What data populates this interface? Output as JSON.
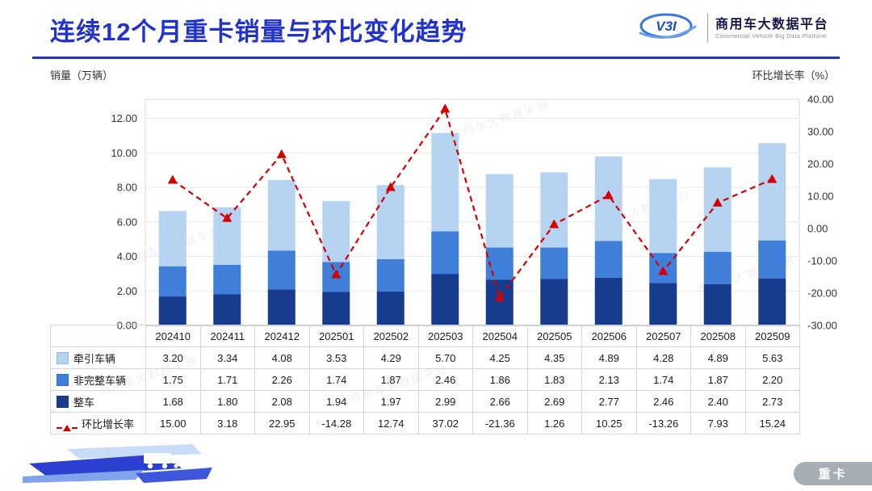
{
  "header": {
    "title": "连续12个月重卡销量与环比变化趋势",
    "logo_text": "V3I",
    "brand_name": "商用车大数据平台",
    "brand_subtitle": "Commercial Vehicle Big Data Platform"
  },
  "axes": {
    "left_label": "销量（万辆）",
    "right_label": "环比增长率（%）"
  },
  "chart_data": {
    "type": "bar",
    "subtype": "stacked-bars-with-line",
    "title": "连续12个月重卡销量与环比变化趋势",
    "categories": [
      "202410",
      "202411",
      "202412",
      "202501",
      "202502",
      "202503",
      "202504",
      "202505",
      "202506",
      "202507",
      "202508",
      "202509"
    ],
    "series": [
      {
        "name": "牵引车辆",
        "type": "bar",
        "color": "#B7D3F2",
        "values": [
          3.2,
          3.34,
          4.08,
          3.53,
          4.29,
          5.7,
          4.25,
          4.35,
          4.89,
          4.28,
          4.89,
          5.63
        ]
      },
      {
        "name": "非完整车辆",
        "type": "bar",
        "color": "#3F7FD9",
        "values": [
          1.75,
          1.71,
          2.26,
          1.74,
          1.87,
          2.46,
          1.86,
          1.83,
          2.13,
          1.74,
          1.87,
          2.2
        ]
      },
      {
        "name": "整车",
        "type": "bar",
        "color": "#173C8D",
        "values": [
          1.68,
          1.8,
          2.08,
          1.94,
          1.97,
          2.99,
          2.66,
          2.69,
          2.77,
          2.46,
          2.4,
          2.73
        ]
      },
      {
        "name": "环比增长率",
        "type": "line",
        "color": "#D40000",
        "values": [
          15.0,
          3.18,
          22.95,
          -14.28,
          12.74,
          37.02,
          -21.36,
          1.26,
          10.25,
          -13.26,
          7.93,
          15.24
        ]
      }
    ],
    "stack_order_bottom_to_top": [
      "整车",
      "非完整车辆",
      "牵引车辆"
    ],
    "left_axis": {
      "label": "销量（万辆）",
      "min": 0,
      "plot_max": 13.1,
      "ticks": [
        0,
        2,
        4,
        6,
        8,
        10,
        12
      ]
    },
    "right_axis": {
      "label": "环比增长率（%）",
      "min": -30,
      "max": 40,
      "ticks": [
        -30,
        -20,
        -10,
        0,
        10,
        20,
        30,
        40
      ]
    },
    "grid": "horizontal-only",
    "legend_position": "table-left-column"
  },
  "badge": "重卡",
  "watermark": "商用车大数据平台",
  "colors": {
    "title_accent": "#2233CC",
    "bar_light": "#B7D3F2",
    "bar_medium": "#3F7FD9",
    "bar_dark": "#173C8D",
    "line_red": "#D40000",
    "badge_bg": "#A7ADB4"
  }
}
